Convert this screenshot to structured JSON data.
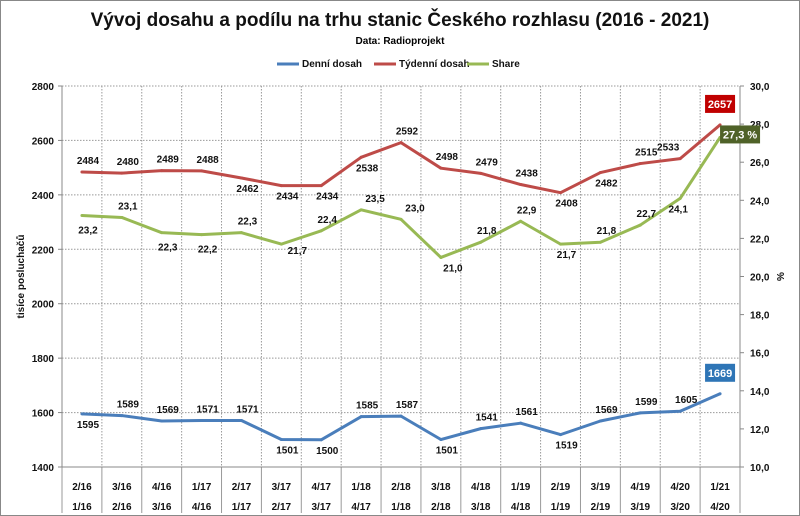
{
  "chart_data": {
    "type": "line",
    "title": "Vývoj dosahu a podílu na trhu stanic Českého rozhlasu (2016 - 2021)",
    "subtitle": "Data: Radioprojekt",
    "categories_top": [
      "2/16",
      "3/16",
      "4/16",
      "1/17",
      "2/17",
      "3/17",
      "4/17",
      "1/18",
      "2/18",
      "3/18",
      "4/18",
      "1/19",
      "2/19",
      "3/19",
      "4/19",
      "4/20",
      "1/21"
    ],
    "categories_bottom": [
      "1/16",
      "2/16",
      "3/16",
      "4/16",
      "1/17",
      "2/17",
      "3/17",
      "4/17",
      "1/18",
      "2/18",
      "3/18",
      "4/18",
      "1/19",
      "2/19",
      "3/19",
      "3/20",
      "4/20"
    ],
    "ylabel": "tisíce posluchačů",
    "y2label": "%",
    "ylim": [
      1400,
      2800
    ],
    "yticks": [
      "1400",
      "1600",
      "1800",
      "2000",
      "2200",
      "2400",
      "2600",
      "2800"
    ],
    "y2lim": [
      10,
      30
    ],
    "y2ticks": [
      "10,0",
      "12,0",
      "14,0",
      "16,0",
      "18,0",
      "20,0",
      "22,0",
      "24,0",
      "26,0",
      "28,0",
      "30,0"
    ],
    "grid": true,
    "legend_position": "top",
    "series": [
      {
        "name": "Denní dosah",
        "axis": "left",
        "color": "#4a7ebb",
        "values": [
          1595,
          1589,
          1569,
          1571,
          1571,
          1501,
          1500,
          1585,
          1587,
          1501,
          1541,
          1561,
          1519,
          1569,
          1599,
          1605,
          1669
        ],
        "labels": [
          "1595",
          "1589",
          "1569",
          "1571",
          "1571",
          "1501",
          "1500",
          "1585",
          "1587",
          "1501",
          "1541",
          "1561",
          "1519",
          "1569",
          "1599",
          "1605",
          "1669"
        ]
      },
      {
        "name": "Týdenní dosah",
        "axis": "left",
        "color": "#be4b48",
        "values": [
          2484,
          2480,
          2489,
          2488,
          2462,
          2434,
          2434,
          2538,
          2592,
          2498,
          2479,
          2438,
          2408,
          2482,
          2515,
          2533,
          2657
        ],
        "labels": [
          "2484",
          "2480",
          "2489",
          "2488",
          "2462",
          "2434",
          "2434",
          "2538",
          "2592",
          "2498",
          "2479",
          "2438",
          "2408",
          "2482",
          "2515",
          "2533",
          "2657"
        ]
      },
      {
        "name": "Share",
        "axis": "right",
        "color": "#98b954",
        "values": [
          23.2,
          23.1,
          22.3,
          22.2,
          22.3,
          21.7,
          22.4,
          23.5,
          23.0,
          21.0,
          21.8,
          22.9,
          21.7,
          21.8,
          22.7,
          24.1,
          27.3
        ],
        "labels": [
          "23,2",
          "23,1",
          "22,3",
          "22,2",
          "22,3",
          "21,7",
          "22,4",
          "23,5",
          "23,0",
          "21,0",
          "21,8",
          "22,9",
          "21,7",
          "21,8",
          "22,7",
          "24,1",
          "27,3 %"
        ]
      }
    ],
    "callout_colors": [
      "#2e75b6",
      "#c00000",
      "#4f6228"
    ]
  }
}
